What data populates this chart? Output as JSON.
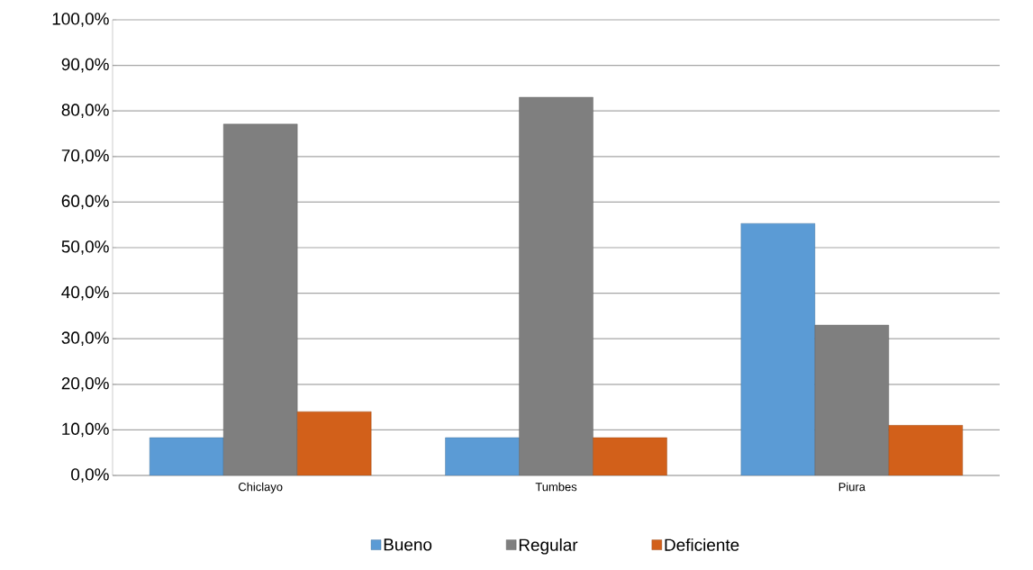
{
  "chart_data": {
    "type": "bar",
    "categories": [
      "Chiclayo",
      "Tumbes",
      "Piura"
    ],
    "series": [
      {
        "name": "Bueno",
        "color": "#5b9bd5",
        "values": [
          8.3,
          8.3,
          55.3
        ]
      },
      {
        "name": "Regular",
        "color": "#7f7f7f",
        "values": [
          77.1,
          83.0,
          33.0
        ]
      },
      {
        "name": "Deficiente",
        "color": "#d2601a",
        "values": [
          14.0,
          8.3,
          11.0
        ]
      }
    ],
    "ylim": [
      0,
      100
    ],
    "yticks": [
      {
        "value": 0,
        "label": "0,0%"
      },
      {
        "value": 10,
        "label": "10,0%"
      },
      {
        "value": 20,
        "label": "20,0%"
      },
      {
        "value": 30,
        "label": "30,0%"
      },
      {
        "value": 40,
        "label": "40,0%"
      },
      {
        "value": 50,
        "label": "50,0%"
      },
      {
        "value": 60,
        "label": "60,0%"
      },
      {
        "value": 70,
        "label": "70,0%"
      },
      {
        "value": 80,
        "label": "80,0%"
      },
      {
        "value": 90,
        "label": "90,0%"
      },
      {
        "value": 100,
        "label": "100,0%"
      }
    ],
    "grid": "y",
    "legend": "bottom"
  }
}
